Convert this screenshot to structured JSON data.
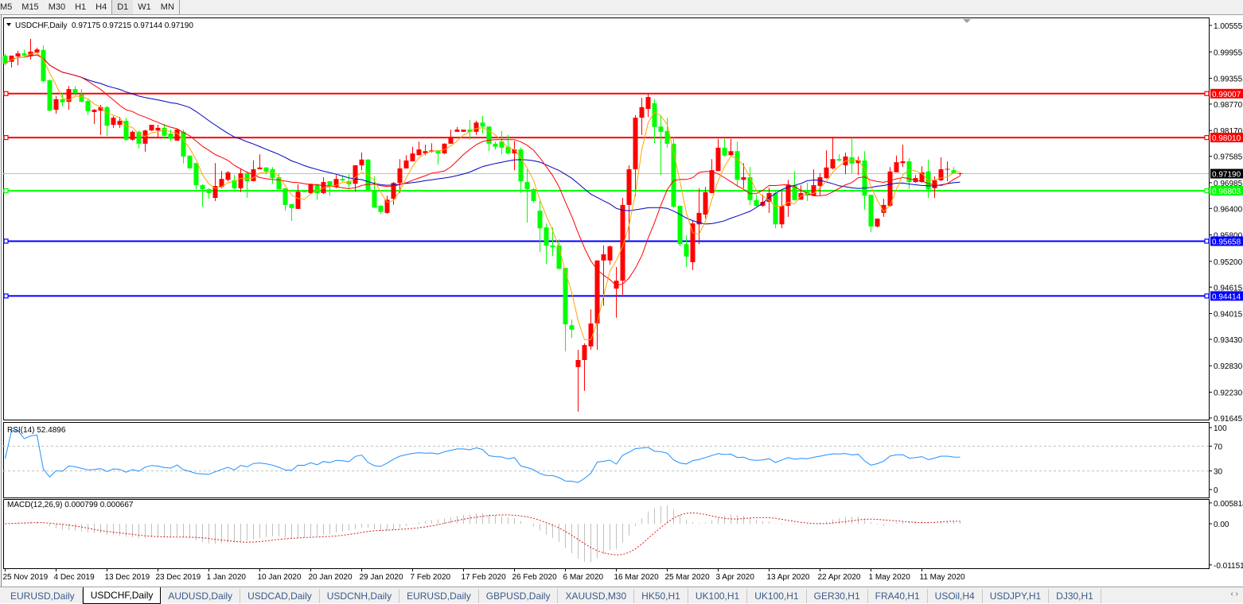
{
  "toolbar": {
    "timeframes": [
      "M5",
      "M15",
      "M30",
      "H1",
      "H4",
      "D1",
      "W1",
      "MN"
    ],
    "active": "D1"
  },
  "header": {
    "symbol": "USDCHF,Daily",
    "ohlc": "0.97175 0.97215 0.97144 0.97190"
  },
  "rsi": {
    "label": "RSI(14) 52.4896",
    "axis": [
      "100",
      "70",
      "30",
      "0"
    ]
  },
  "macd": {
    "label": "MACD(12,26,9) 0.000799 0.000667",
    "axis": [
      "0.005818",
      "0.00",
      "-0.011514"
    ]
  },
  "colors": {
    "bull_candle": "#ff0000",
    "bear_candle": "#00ff00",
    "ma_fast": "#ffa500",
    "ma_mid": "#ff0000",
    "ma_slow": "#0000c0",
    "rsi_line": "#1e90ff",
    "macd_hist": "#c0c0c0",
    "macd_signal": "#d02020",
    "current_price_line": "#c0c0c0"
  },
  "chart_data": {
    "type": "candlestick",
    "symbol": "USDCHF",
    "timeframe": "Daily",
    "ylim": [
      0.91645,
      1.00555
    ],
    "y_ticks": [
      "1.00555",
      "0.99955",
      "0.99355",
      "0.98770",
      "0.98170",
      "0.97585",
      "0.96985",
      "0.96400",
      "0.95800",
      "0.95200",
      "0.94615",
      "0.94015",
      "0.93430",
      "0.92830",
      "0.92230",
      "0.91645"
    ],
    "x_labels": [
      "25 Nov 2019",
      "4 Dec 2019",
      "13 Dec 2019",
      "23 Dec 2019",
      "1 Jan 2020",
      "10 Jan 2020",
      "20 Jan 2020",
      "29 Jan 2020",
      "7 Feb 2020",
      "17 Feb 2020",
      "26 Feb 2020",
      "6 Mar 2020",
      "16 Mar 2020",
      "25 Mar 2020",
      "3 Apr 2020",
      "13 Apr 2020",
      "22 Apr 2020",
      "1 May 2020",
      "11 May 2020"
    ],
    "current_price": {
      "value": 0.9719,
      "label": "0.97190"
    },
    "levels": [
      {
        "value": 0.99007,
        "label": "0.99007",
        "color": "#ff0000"
      },
      {
        "value": 0.9801,
        "label": "0.98010",
        "color": "#ff0000"
      },
      {
        "value": 0.96803,
        "label": "0.96803",
        "color": "#00ff00"
      },
      {
        "value": 0.95658,
        "label": "0.95658",
        "color": "#0000ff"
      },
      {
        "value": 0.94414,
        "label": "0.94414",
        "color": "#0000ff"
      }
    ],
    "candles_ohlc": [
      [
        0.9987,
        0.9991,
        0.9965,
        0.9969
      ],
      [
        0.9973,
        0.9987,
        0.996,
        0.9987
      ],
      [
        0.9985,
        0.9998,
        0.9965,
        0.9992
      ],
      [
        0.9992,
        1.0001,
        0.9982,
        0.9987
      ],
      [
        0.9987,
        1.0025,
        0.9978,
        0.9996
      ],
      [
        0.9994,
        1.0005,
        0.9992,
        1.0001
      ],
      [
        1.0,
        1.001,
        0.9927,
        0.9929
      ],
      [
        0.9931,
        0.9933,
        0.9861,
        0.9862
      ],
      [
        0.9864,
        0.9895,
        0.9855,
        0.9888
      ],
      [
        0.9888,
        0.9902,
        0.9872,
        0.9881
      ],
      [
        0.9882,
        0.9918,
        0.9864,
        0.9911
      ],
      [
        0.9911,
        0.9918,
        0.9897,
        0.9902
      ],
      [
        0.9899,
        0.9911,
        0.9881,
        0.9882
      ],
      [
        0.9884,
        0.9888,
        0.9852,
        0.9861
      ],
      [
        0.9859,
        0.9866,
        0.9832,
        0.9864
      ],
      [
        0.9862,
        0.9875,
        0.9807,
        0.987
      ],
      [
        0.987,
        0.9873,
        0.9805,
        0.9828
      ],
      [
        0.983,
        0.985,
        0.9823,
        0.9846
      ],
      [
        0.983,
        0.9848,
        0.9823,
        0.9839
      ],
      [
        0.9839,
        0.9846,
        0.9794,
        0.9796
      ],
      [
        0.9796,
        0.9817,
        0.9794,
        0.9814
      ],
      [
        0.9814,
        0.9817,
        0.9776,
        0.9787
      ],
      [
        0.9787,
        0.9819,
        0.9769,
        0.9817
      ],
      [
        0.9817,
        0.983,
        0.9816,
        0.983
      ],
      [
        0.9817,
        0.983,
        0.9799,
        0.9823
      ],
      [
        0.9823,
        0.9832,
        0.9798,
        0.9805
      ],
      [
        0.981,
        0.9819,
        0.9794,
        0.9798
      ],
      [
        0.9794,
        0.9821,
        0.9794,
        0.9819
      ],
      [
        0.9814,
        0.9819,
        0.9742,
        0.9758
      ],
      [
        0.976,
        0.976,
        0.9731,
        0.9731
      ],
      [
        0.9743,
        0.9743,
        0.9684,
        0.9693
      ],
      [
        0.9693,
        0.9695,
        0.9644,
        0.9684
      ],
      [
        0.9684,
        0.9686,
        0.9662,
        0.9675
      ],
      [
        0.9664,
        0.9743,
        0.9657,
        0.9691
      ],
      [
        0.9689,
        0.9725,
        0.9686,
        0.9707
      ],
      [
        0.9705,
        0.9725,
        0.9702,
        0.9722
      ],
      [
        0.9704,
        0.9716,
        0.9684,
        0.9686
      ],
      [
        0.9686,
        0.9731,
        0.9677,
        0.972
      ],
      [
        0.972,
        0.9725,
        0.9664,
        0.9702
      ],
      [
        0.9702,
        0.9749,
        0.9702,
        0.9729
      ],
      [
        0.9729,
        0.9763,
        0.9729,
        0.9733
      ],
      [
        0.9733,
        0.9734,
        0.9718,
        0.9724
      ],
      [
        0.9729,
        0.9734,
        0.9696,
        0.9709
      ],
      [
        0.9711,
        0.972,
        0.9684,
        0.9684
      ],
      [
        0.9686,
        0.9686,
        0.9635,
        0.9648
      ],
      [
        0.965,
        0.965,
        0.9612,
        0.9641
      ],
      [
        0.9639,
        0.9695,
        0.9639,
        0.9678
      ],
      [
        0.9678,
        0.968,
        0.9677,
        0.9677
      ],
      [
        0.9675,
        0.9696,
        0.9673,
        0.9696
      ],
      [
        0.9695,
        0.9696,
        0.966,
        0.9675
      ],
      [
        0.9675,
        0.9711,
        0.9673,
        0.97
      ],
      [
        0.9702,
        0.9702,
        0.9668,
        0.9689
      ],
      [
        0.9689,
        0.9716,
        0.9686,
        0.9707
      ],
      [
        0.9707,
        0.9715,
        0.9702,
        0.9704
      ],
      [
        0.9702,
        0.9718,
        0.9684,
        0.9695
      ],
      [
        0.9696,
        0.9738,
        0.9678,
        0.9738
      ],
      [
        0.9738,
        0.9767,
        0.9727,
        0.9751
      ],
      [
        0.9751,
        0.9752,
        0.968,
        0.9682
      ],
      [
        0.9682,
        0.9713,
        0.9641,
        0.9642
      ],
      [
        0.9646,
        0.9648,
        0.9628,
        0.9632
      ],
      [
        0.963,
        0.9669,
        0.9628,
        0.966
      ],
      [
        0.9662,
        0.97,
        0.9648,
        0.9698
      ],
      [
        0.9698,
        0.9752,
        0.9675,
        0.9731
      ],
      [
        0.9731,
        0.9761,
        0.9731,
        0.9749
      ],
      [
        0.9747,
        0.978,
        0.9747,
        0.9765
      ],
      [
        0.9761,
        0.9792,
        0.9761,
        0.9774
      ],
      [
        0.9765,
        0.9785,
        0.9761,
        0.977
      ],
      [
        0.9769,
        0.9788,
        0.9767,
        0.9772
      ],
      [
        0.9772,
        0.9772,
        0.974,
        0.9765
      ],
      [
        0.9765,
        0.9788,
        0.9763,
        0.9787
      ],
      [
        0.9787,
        0.9819,
        0.9787,
        0.9803
      ],
      [
        0.9814,
        0.9825,
        0.9814,
        0.9819
      ],
      [
        0.9814,
        0.9817,
        0.9814,
        0.9819
      ],
      [
        0.9819,
        0.9841,
        0.9796,
        0.9814
      ],
      [
        0.9814,
        0.9839,
        0.9807,
        0.9835
      ],
      [
        0.9835,
        0.985,
        0.981,
        0.9826
      ],
      [
        0.9826,
        0.9826,
        0.977,
        0.9787
      ],
      [
        0.9787,
        0.9792,
        0.9774,
        0.978
      ],
      [
        0.9792,
        0.9816,
        0.9763,
        0.9778
      ],
      [
        0.978,
        0.9807,
        0.9763,
        0.9765
      ],
      [
        0.9765,
        0.9794,
        0.9727,
        0.9774
      ],
      [
        0.9774,
        0.9778,
        0.9675,
        0.9702
      ],
      [
        0.97,
        0.9729,
        0.9608,
        0.9684
      ],
      [
        0.9684,
        0.9686,
        0.9653,
        0.9657
      ],
      [
        0.9635,
        0.9657,
        0.9541,
        0.9595
      ],
      [
        0.9597,
        0.9606,
        0.9514,
        0.9556
      ],
      [
        0.9556,
        0.9597,
        0.9532,
        0.9552
      ],
      [
        0.9556,
        0.957,
        0.9502,
        0.9503
      ],
      [
        0.9505,
        0.9505,
        0.9316,
        0.9377
      ],
      [
        0.9375,
        0.9388,
        0.9346,
        0.9365
      ],
      [
        0.928,
        0.9319,
        0.9179,
        0.9296
      ],
      [
        0.9296,
        0.9334,
        0.9226,
        0.933
      ],
      [
        0.9327,
        0.9411,
        0.9319,
        0.9379
      ],
      [
        0.9379,
        0.9522,
        0.9319,
        0.9522
      ],
      [
        0.9522,
        0.9556,
        0.9419,
        0.9536
      ],
      [
        0.9522,
        0.9556,
        0.9512,
        0.9554
      ],
      [
        0.9458,
        0.9507,
        0.9392,
        0.9476
      ],
      [
        0.9476,
        0.9664,
        0.9444,
        0.9648
      ],
      [
        0.9648,
        0.9738,
        0.9568,
        0.9729
      ],
      [
        0.9729,
        0.9852,
        0.9668,
        0.9846
      ],
      [
        0.9846,
        0.9891,
        0.9807,
        0.987
      ],
      [
        0.9866,
        0.9902,
        0.9848,
        0.9893
      ],
      [
        0.9879,
        0.9888,
        0.9788,
        0.9825
      ],
      [
        0.9826,
        0.9852,
        0.9716,
        0.9814
      ],
      [
        0.9816,
        0.9846,
        0.9778,
        0.9787
      ],
      [
        0.9787,
        0.9803,
        0.9641,
        0.9644
      ],
      [
        0.9646,
        0.9646,
        0.9554,
        0.9559
      ],
      [
        0.9559,
        0.9579,
        0.9507,
        0.9531
      ],
      [
        0.9518,
        0.9613,
        0.95,
        0.9606
      ],
      [
        0.9604,
        0.9686,
        0.9559,
        0.963
      ],
      [
        0.9626,
        0.9689,
        0.9617,
        0.9677
      ],
      [
        0.9675,
        0.9752,
        0.9675,
        0.9727
      ],
      [
        0.9725,
        0.9798,
        0.9725,
        0.9778
      ],
      [
        0.9778,
        0.9798,
        0.9758,
        0.976
      ],
      [
        0.9761,
        0.9798,
        0.976,
        0.977
      ],
      [
        0.977,
        0.9792,
        0.9689,
        0.9705
      ],
      [
        0.9705,
        0.9743,
        0.9686,
        0.9711
      ],
      [
        0.9711,
        0.9734,
        0.9648,
        0.9659
      ],
      [
        0.9659,
        0.9671,
        0.9644,
        0.9646
      ],
      [
        0.9646,
        0.9671,
        0.9644,
        0.9655
      ],
      [
        0.9655,
        0.9687,
        0.963,
        0.9675
      ],
      [
        0.9675,
        0.968,
        0.9595,
        0.9604
      ],
      [
        0.9604,
        0.968,
        0.9595,
        0.9646
      ],
      [
        0.9646,
        0.9705,
        0.9621,
        0.9693
      ],
      [
        0.9693,
        0.9725,
        0.9659,
        0.9659
      ],
      [
        0.966,
        0.9693,
        0.966,
        0.9675
      ],
      [
        0.9678,
        0.9698,
        0.9657,
        0.9669
      ],
      [
        0.9669,
        0.9729,
        0.9669,
        0.9693
      ],
      [
        0.9691,
        0.972,
        0.9669,
        0.9711
      ],
      [
        0.9709,
        0.9772,
        0.9707,
        0.9733
      ],
      [
        0.9731,
        0.9803,
        0.9729,
        0.9752
      ],
      [
        0.9752,
        0.9763,
        0.9747,
        0.9749
      ],
      [
        0.9738,
        0.9767,
        0.9718,
        0.9758
      ],
      [
        0.9756,
        0.9801,
        0.972,
        0.9742
      ],
      [
        0.9743,
        0.9758,
        0.9716,
        0.9749
      ],
      [
        0.9749,
        0.977,
        0.9637,
        0.9669
      ],
      [
        0.9671,
        0.9671,
        0.9586,
        0.9599
      ],
      [
        0.9599,
        0.9617,
        0.9597,
        0.9617
      ],
      [
        0.963,
        0.9662,
        0.9621,
        0.9648
      ],
      [
        0.9646,
        0.9734,
        0.9644,
        0.9724
      ],
      [
        0.9722,
        0.976,
        0.9722,
        0.9745
      ],
      [
        0.9743,
        0.9785,
        0.9734,
        0.9747
      ],
      [
        0.9747,
        0.9754,
        0.9684,
        0.97
      ],
      [
        0.97,
        0.9716,
        0.9698,
        0.9709
      ],
      [
        0.97,
        0.9736,
        0.9698,
        0.9722
      ],
      [
        0.9724,
        0.9751,
        0.9664,
        0.9684
      ],
      [
        0.9686,
        0.9713,
        0.9664,
        0.9704
      ],
      [
        0.9704,
        0.9756,
        0.9702,
        0.9729
      ],
      [
        0.9727,
        0.9747,
        0.9702,
        0.9729
      ],
      [
        0.9727,
        0.9734,
        0.972,
        0.972
      ],
      [
        0.97175,
        0.97215,
        0.97144,
        0.9719
      ]
    ]
  },
  "tabs": [
    "EURUSD,Daily",
    "USDCHF,Daily",
    "AUDUSD,Daily",
    "USDCAD,Daily",
    "USDCNH,Daily",
    "EURUSD,Daily",
    "GBPUSD,Daily",
    "XAUUSD,M30",
    "HK50,H1",
    "UK100,H1",
    "UK100,H1",
    "GER30,H1",
    "FRA40,H1",
    "USOil,H4",
    "USDJPY,H1",
    "DJ30,H1"
  ],
  "active_tab": "USDCHF,Daily",
  "tab_scroll": "‹ ›"
}
